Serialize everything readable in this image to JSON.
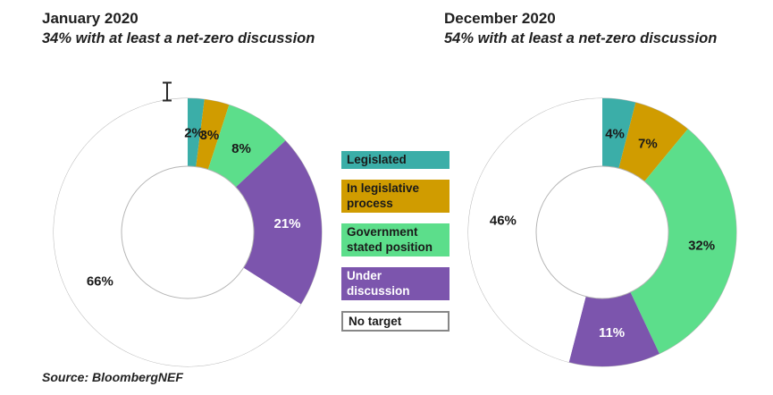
{
  "page": {
    "background": "#ffffff"
  },
  "source": "Source: BloombergNEF",
  "icons": {
    "text_cursor": "i-beam text cursor"
  },
  "legend": {
    "items": [
      {
        "label": "Legislated",
        "color": "#3BAEA8",
        "text_color": "#1a1a1a",
        "border": false
      },
      {
        "label": "In legislative process",
        "color": "#D09C00",
        "text_color": "#1a1a1a",
        "border": false
      },
      {
        "label": "Government stated position",
        "color": "#5CDE8B",
        "text_color": "#1a1a1a",
        "border": false
      },
      {
        "label": "Under discussion",
        "color": "#7C55AD",
        "text_color": "#ffffff",
        "border": false
      },
      {
        "label": "No target",
        "color": "#ffffff",
        "text_color": "#1a1a1a",
        "border": true
      }
    ]
  },
  "chart_data": [
    {
      "type": "pie",
      "subtype": "donut",
      "title": "January 2020",
      "subtitle": "34% with at least a net-zero discussion",
      "categories": [
        "Legislated",
        "In legislative process",
        "Government stated position",
        "Under discussion",
        "No target"
      ],
      "values": [
        2,
        3,
        8,
        21,
        66
      ],
      "labels": [
        "2%",
        "3%",
        "8%",
        "21%",
        "66%"
      ],
      "colors": [
        "#3BAEA8",
        "#D09C00",
        "#5CDE8B",
        "#7C55AD",
        "#FFFFFF"
      ],
      "label_colors": [
        "#1a1a1a",
        "#1a1a1a",
        "#1a1a1a",
        "#ffffff",
        "#1a1a1a"
      ],
      "start_angle_deg": 0,
      "direction": "clockwise",
      "ring_outline_color": "#B5B5B5",
      "legend_position": "center-between-charts"
    },
    {
      "type": "pie",
      "subtype": "donut",
      "title": "December 2020",
      "subtitle": "54% with at least a net-zero discussion",
      "categories": [
        "Legislated",
        "In legislative process",
        "Government stated position",
        "Under discussion",
        "No target"
      ],
      "values": [
        4,
        7,
        32,
        11,
        46
      ],
      "labels": [
        "4%",
        "7%",
        "32%",
        "11%",
        "46%"
      ],
      "colors": [
        "#3BAEA8",
        "#D09C00",
        "#5CDE8B",
        "#7C55AD",
        "#FFFFFF"
      ],
      "label_colors": [
        "#1a1a1a",
        "#1a1a1a",
        "#1a1a1a",
        "#ffffff",
        "#1a1a1a"
      ],
      "start_angle_deg": 0,
      "direction": "clockwise",
      "ring_outline_color": "#B5B5B5",
      "legend_position": "center-between-charts"
    }
  ]
}
